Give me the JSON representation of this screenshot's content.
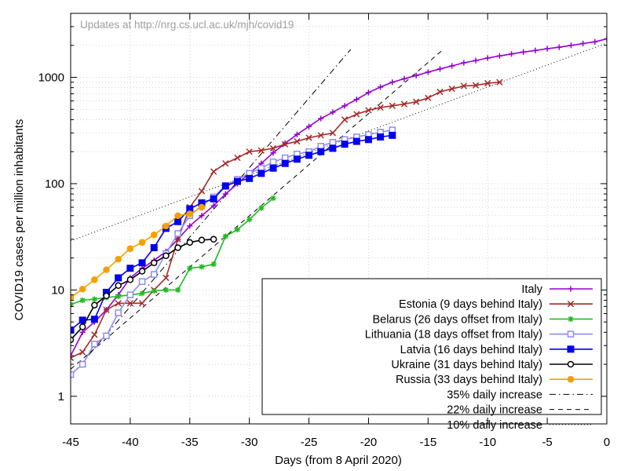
{
  "chart_data": {
    "type": "line",
    "title": "",
    "watermark": "Updates at http://nrg.cs.ucl.ac.uk/mjh/covid19",
    "xlabel": "Days (from 8 April 2020)",
    "ylabel": "COVID19 cases per million inhabitants",
    "xlim": [
      -45,
      0
    ],
    "ylim": [
      0.55,
      4000
    ],
    "yscale": "log",
    "grid": true,
    "legend_position": "bottom-right",
    "x_ticks": [
      -45,
      -40,
      -35,
      -30,
      -25,
      -20,
      -15,
      -10,
      -5,
      0
    ],
    "x_tick_labels": [
      "-45",
      "-40",
      "-35",
      "-30",
      "-25",
      "-20",
      "-15",
      "-10",
      "-5",
      "0"
    ],
    "y_ticks": [
      1,
      10,
      100,
      1000
    ],
    "y_tick_labels": [
      "1",
      "10",
      "100",
      "1000"
    ],
    "series": [
      {
        "name": "Italy",
        "color": "#9400d3",
        "marker": "plus",
        "x": [
          -45,
          -44,
          -43,
          -42,
          -41,
          -40,
          -39,
          -38,
          -37,
          -36,
          -35,
          -34,
          -33,
          -32,
          -31,
          -30,
          -29,
          -28,
          -27,
          -26,
          -25,
          -24,
          -23,
          -22,
          -21,
          -20,
          -19,
          -18,
          -17,
          -16,
          -15,
          -14,
          -13,
          -12,
          -11,
          -10,
          -9,
          -8,
          -7,
          -6,
          -5,
          -4,
          -3,
          -2,
          -1,
          0
        ],
        "y": [
          2.4,
          4,
          5,
          6.5,
          9,
          13,
          16,
          19,
          23,
          30,
          40,
          50,
          62,
          80,
          100,
          125,
          155,
          195,
          240,
          290,
          345,
          410,
          470,
          540,
          620,
          720,
          810,
          900,
          970,
          1040,
          1120,
          1200,
          1280,
          1370,
          1440,
          1520,
          1590,
          1660,
          1730,
          1790,
          1860,
          1920,
          2000,
          2080,
          2160,
          2300
        ]
      },
      {
        "name": "Estonia (9 days behind Italy)",
        "color": "#a52a2a",
        "marker": "x",
        "x": [
          -45,
          -44,
          -43,
          -42,
          -41,
          -40,
          -39,
          -38,
          -37,
          -36,
          -35,
          -34,
          -33,
          -32,
          -31,
          -30,
          -29,
          -28,
          -27,
          -26,
          -25,
          -24,
          -23,
          -22,
          -21,
          -20,
          -19,
          -18,
          -17,
          -16,
          -15,
          -14,
          -13,
          -12,
          -11,
          -10,
          -9
        ],
        "y": [
          2.3,
          2.6,
          3.8,
          6.5,
          7.5,
          7.5,
          7.5,
          10,
          13,
          30,
          60,
          85,
          130,
          155,
          175,
          200,
          205,
          215,
          235,
          250,
          270,
          285,
          300,
          400,
          450,
          490,
          520,
          540,
          560,
          590,
          640,
          730,
          780,
          830,
          840,
          880,
          900
        ]
      },
      {
        "name": "Belarus (26 days offset from Italy)",
        "color": "#22bb22",
        "marker": "asterisk",
        "x": [
          -45,
          -44,
          -43,
          -42,
          -41,
          -40,
          -39,
          -38,
          -37,
          -36,
          -35,
          -34,
          -33,
          -32,
          -31,
          -30,
          -29,
          -28
        ],
        "y": [
          7.3,
          8.0,
          8.2,
          8.5,
          8.7,
          9.0,
          9.3,
          9.8,
          10,
          10,
          16,
          16.5,
          17.5,
          32,
          37,
          46,
          59,
          73
        ]
      },
      {
        "name": "Lithuania (18 days offset from Italy)",
        "color": "#8c8cf0",
        "marker": "square-open",
        "x": [
          -45,
          -44,
          -43,
          -42,
          -41,
          -40,
          -39,
          -38,
          -37,
          -36,
          -35,
          -34,
          -33,
          -32,
          -31,
          -30,
          -29,
          -28,
          -27,
          -26,
          -25,
          -24,
          -23,
          -22,
          -21,
          -20,
          -19,
          -18
        ],
        "y": [
          1.6,
          2.0,
          3.1,
          3.7,
          6.1,
          9.0,
          12,
          14,
          22,
          34,
          50,
          62,
          75,
          96,
          110,
          125,
          140,
          160,
          175,
          190,
          200,
          225,
          245,
          260,
          275,
          290,
          305,
          320
        ]
      },
      {
        "name": "Latvia (16 days behind Italy)",
        "color": "#0000ee",
        "marker": "square-filled",
        "x": [
          -45,
          -44,
          -43,
          -42,
          -41,
          -40,
          -39,
          -38,
          -37,
          -36,
          -35,
          -34,
          -33,
          -32,
          -31,
          -30,
          -29,
          -28,
          -27,
          -26,
          -25,
          -24,
          -23,
          -22,
          -21,
          -20,
          -19,
          -18
        ],
        "y": [
          4.2,
          5.2,
          5.3,
          9.5,
          13,
          16,
          18,
          25,
          38,
          44,
          58,
          66,
          72,
          95,
          105,
          112,
          125,
          140,
          155,
          170,
          185,
          200,
          215,
          235,
          250,
          260,
          275,
          285
        ]
      },
      {
        "name": "Ukraine (31 days behind Italy)",
        "color": "#000000",
        "marker": "circle-open",
        "x": [
          -45,
          -44,
          -43,
          -42,
          -41,
          -40,
          -39,
          -38,
          -37,
          -36,
          -35,
          -34,
          -33
        ],
        "y": [
          3.4,
          4.5,
          7.2,
          8.8,
          11,
          12.5,
          15,
          18,
          21,
          25,
          28,
          29.5,
          30
        ]
      },
      {
        "name": "Russia (33 days behind Italy)",
        "color": "#f5a000",
        "marker": "circle-filled",
        "x": [
          -45,
          -44,
          -43,
          -42,
          -41,
          -40,
          -39,
          -38,
          -37,
          -36,
          -35,
          -34
        ],
        "y": [
          8.5,
          10.2,
          12.5,
          15.5,
          19.5,
          24.5,
          28,
          33,
          40,
          50,
          52,
          60
        ]
      }
    ],
    "reference_lines": [
      {
        "name": "35% daily increase",
        "style": "dash-dot",
        "color": "#000000",
        "x": [
          -45,
          -21.5
        ],
        "y": [
          1.55,
          1830
        ]
      },
      {
        "name": "22% daily increase",
        "style": "dashed",
        "color": "#000000",
        "x": [
          -45,
          -13.8
        ],
        "y": [
          1.8,
          1800
        ]
      },
      {
        "name": "10% daily increase",
        "style": "dotted",
        "color": "#000000",
        "x": [
          -45,
          0
        ],
        "y": [
          29,
          2100
        ]
      }
    ]
  }
}
